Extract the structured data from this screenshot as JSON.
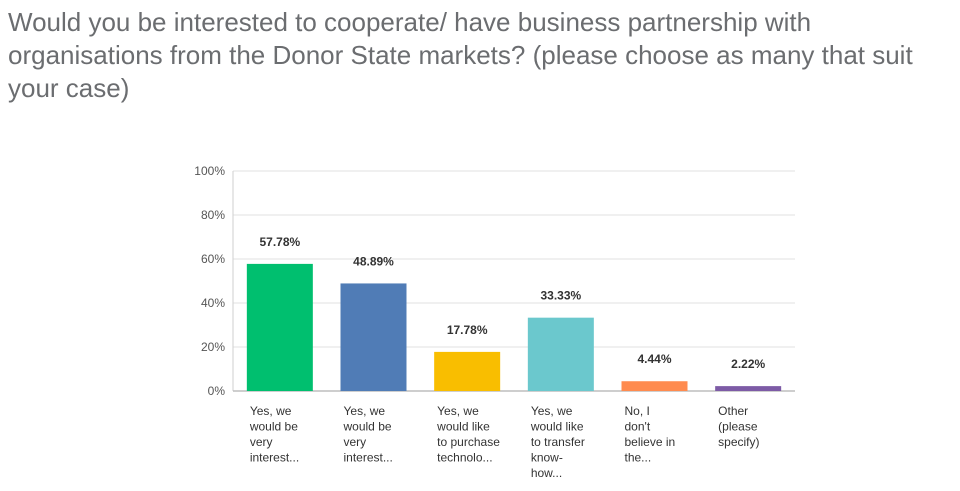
{
  "question": {
    "title": "Would you be interested to cooperate/ have business partnership with organisations from the Donor State markets? (please choose as many that suit your case)"
  },
  "chart_data": {
    "type": "bar",
    "ylim": [
      0,
      100
    ],
    "yticks": [
      "0%",
      "20%",
      "40%",
      "60%",
      "80%",
      "100%"
    ],
    "grid": true,
    "categories": [
      [
        "Yes, we",
        "would be",
        "very",
        "interest..."
      ],
      [
        "Yes, we",
        "would be",
        "very",
        "interest..."
      ],
      [
        "Yes, we",
        "would like",
        "to purchase",
        "technolo..."
      ],
      [
        "Yes, we",
        "would like",
        "to transfer",
        "know-",
        "how..."
      ],
      [
        "No, I",
        "don't",
        "believe in",
        "the..."
      ],
      [
        "Other",
        "(please",
        "specify)"
      ]
    ],
    "values": [
      57.78,
      48.89,
      17.78,
      33.33,
      4.44,
      2.22
    ],
    "data_labels": [
      "57.78%",
      "48.89%",
      "17.78%",
      "33.33%",
      "4.44%",
      "2.22%"
    ],
    "colors": [
      "#00bf6f",
      "#507cb6",
      "#f9be00",
      "#6bc8cd",
      "#ff8b4f",
      "#7d5ba6"
    ]
  }
}
